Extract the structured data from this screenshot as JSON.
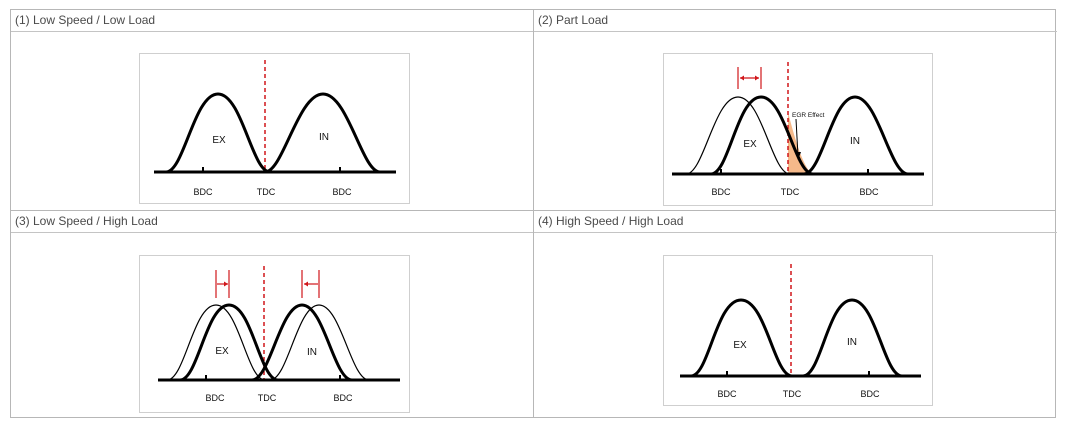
{
  "panels": [
    {
      "title": "(1) Low Speed / Low Load",
      "ex": "EX",
      "in": "IN",
      "bdc_left": "BDC",
      "tdc": "TDC",
      "bdc_right": "BDC"
    },
    {
      "title": "(2) Part Load",
      "ex": "EX",
      "in": "IN",
      "bdc_left": "BDC",
      "tdc": "TDC",
      "bdc_right": "BDC",
      "annotation": "EGR Effect"
    },
    {
      "title": "(3) Low Speed / High Load",
      "ex": "EX",
      "in": "IN",
      "bdc_left": "BDC",
      "tdc": "TDC",
      "bdc_right": "BDC"
    },
    {
      "title": "(4) High Speed / High Load",
      "ex": "EX",
      "in": "IN",
      "bdc_left": "BDC",
      "tdc": "TDC",
      "bdc_right": "BDC"
    }
  ],
  "colors": {
    "curve": "#000000",
    "tdc_line": "#d0161a",
    "shift_arrow": "#d0161a",
    "egr_fill": "#f5b98a"
  }
}
